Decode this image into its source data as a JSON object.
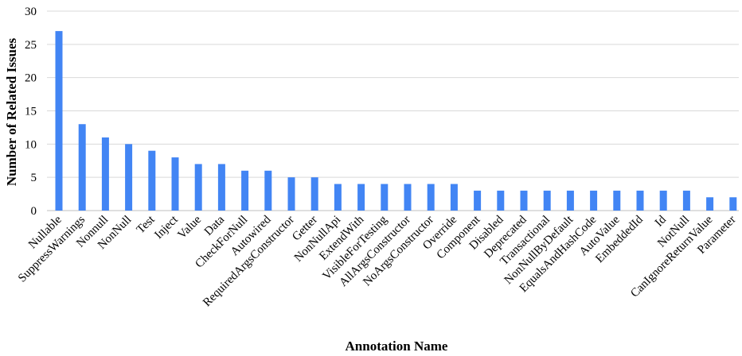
{
  "chart_data": {
    "type": "bar",
    "title": "",
    "xlabel": "Annotation Name",
    "ylabel": "Number of Related Issues",
    "ylim": [
      0,
      30
    ],
    "yticks": [
      0,
      5,
      10,
      15,
      20,
      25,
      30
    ],
    "grid": true,
    "bar_color": "#4285f4",
    "categories": [
      "Nullable",
      "SuppressWarnings",
      "Nonnull",
      "NonNull",
      "Test",
      "Inject",
      "Value",
      "Data",
      "CheckForNull",
      "Autowired",
      "RequiredArgsConstructor",
      "Getter",
      "NonNullApi",
      "ExtendWith",
      "VisibleForTesting",
      "AllArgsConstructor",
      "NoArgsConstructor",
      "Override",
      "Component",
      "Disabled",
      "Deprecated",
      "Transactional",
      "NonNullByDefault",
      "EqualsAndHashCode",
      "AutoValue",
      "EmbeddedId",
      "Id",
      "NotNull",
      "CanIgnoreReturnValue",
      "Parameter"
    ],
    "values": [
      27,
      13,
      11,
      10,
      9,
      8,
      7,
      7,
      6,
      6,
      5,
      5,
      4,
      4,
      4,
      4,
      4,
      4,
      3,
      3,
      3,
      3,
      3,
      3,
      3,
      3,
      3,
      3,
      2,
      2
    ]
  }
}
